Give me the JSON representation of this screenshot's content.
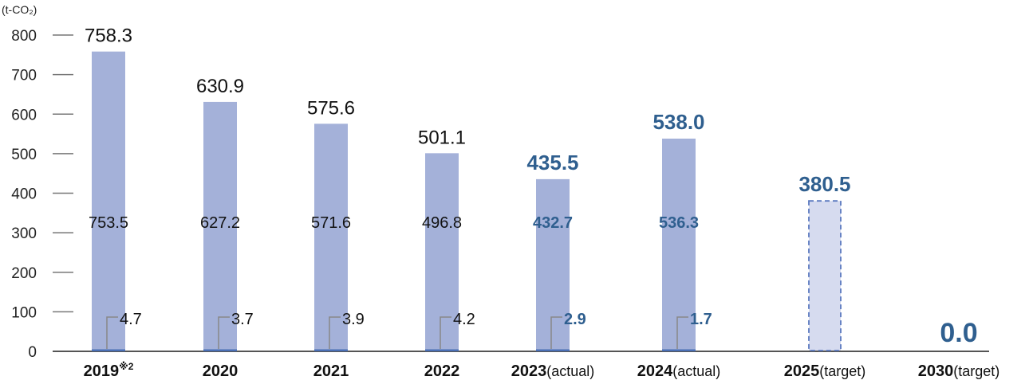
{
  "chart_data": {
    "type": "bar",
    "unit_label": "(t-CO₂)",
    "y_ticks": [
      "0",
      "100",
      "200",
      "300",
      "400",
      "500",
      "600",
      "700",
      "800"
    ],
    "ylim": [
      0,
      800
    ],
    "categories": [
      {
        "year": "2019",
        "suffix": "※2"
      },
      {
        "year": "2020",
        "suffix": ""
      },
      {
        "year": "2021",
        "suffix": ""
      },
      {
        "year": "2022",
        "suffix": ""
      },
      {
        "year": "2023",
        "suffix": "(actual)"
      },
      {
        "year": "2024",
        "suffix": "(actual)"
      },
      {
        "year": "2025",
        "suffix": "(target)"
      },
      {
        "year": "2030",
        "suffix": "(target)"
      }
    ],
    "total_values": [
      758.3,
      630.9,
      575.6,
      501.1,
      435.5,
      538.0,
      380.5,
      0.0
    ],
    "total_labels": [
      "758.3",
      "630.9",
      "575.6",
      "501.1",
      "435.5",
      "538.0",
      "380.5",
      "0.0"
    ],
    "large_segment_values": [
      753.5,
      627.2,
      571.6,
      496.8,
      432.7,
      536.3
    ],
    "large_segment_labels": [
      "753.5",
      "627.2",
      "571.6",
      "496.8",
      "432.7",
      "536.3"
    ],
    "small_segment_values": [
      4.7,
      3.7,
      3.9,
      4.2,
      2.9,
      1.7
    ],
    "small_segment_labels": [
      "4.7",
      "3.7",
      "3.9",
      "4.2",
      "2.9",
      "1.7"
    ],
    "highlighted_categories": [
      4,
      5,
      6,
      7
    ],
    "target_bar_index": 6,
    "colors": {
      "bar": "#a4b1d9",
      "small_segment": "#4a6fb5",
      "target_fill": "#d6dbef",
      "target_border": "#5a78bf",
      "highlight_text": "#2f5f8f",
      "axis": "#555555"
    }
  }
}
